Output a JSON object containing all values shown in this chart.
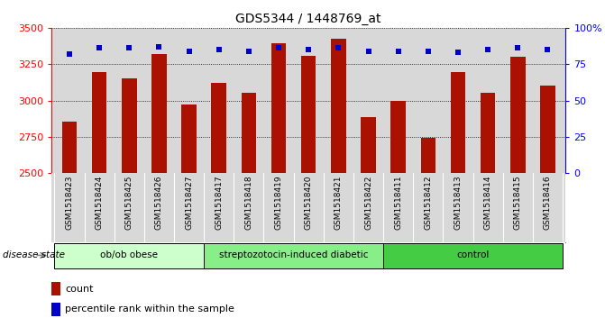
{
  "title": "GDS5344 / 1448769_at",
  "samples": [
    "GSM1518423",
    "GSM1518424",
    "GSM1518425",
    "GSM1518426",
    "GSM1518427",
    "GSM1518417",
    "GSM1518418",
    "GSM1518419",
    "GSM1518420",
    "GSM1518421",
    "GSM1518422",
    "GSM1518411",
    "GSM1518412",
    "GSM1518413",
    "GSM1518414",
    "GSM1518415",
    "GSM1518416"
  ],
  "counts": [
    2855,
    3195,
    3155,
    3320,
    2975,
    3120,
    3055,
    3395,
    3305,
    3425,
    2885,
    3000,
    2745,
    3195,
    3055,
    3300,
    3105
  ],
  "percentile_ranks": [
    82,
    86,
    86,
    87,
    84,
    85,
    84,
    86,
    85,
    86,
    84,
    84,
    84,
    83,
    85,
    86,
    85
  ],
  "groups": [
    {
      "label": "ob/ob obese",
      "start": 0,
      "end": 5,
      "color": "#ccffcc"
    },
    {
      "label": "streptozotocin-induced diabetic",
      "start": 5,
      "end": 11,
      "color": "#88ee88"
    },
    {
      "label": "control",
      "start": 11,
      "end": 17,
      "color": "#44cc44"
    }
  ],
  "bar_color": "#aa1100",
  "dot_color": "#0000cc",
  "ylim_left": [
    2500,
    3500
  ],
  "ylim_right": [
    0,
    100
  ],
  "ylabel_left_ticks": [
    2500,
    2750,
    3000,
    3250,
    3500
  ],
  "ylabel_right_ticks": [
    0,
    25,
    50,
    75,
    100
  ],
  "ylabel_right_labels": [
    "0",
    "25",
    "50",
    "75",
    "100%"
  ],
  "disease_state_label": "disease state",
  "legend_count_label": "count",
  "legend_percentile_label": "percentile rank within the sample",
  "plot_bg_color": "#d8d8d8",
  "title_fontsize": 10,
  "bar_width": 0.5
}
